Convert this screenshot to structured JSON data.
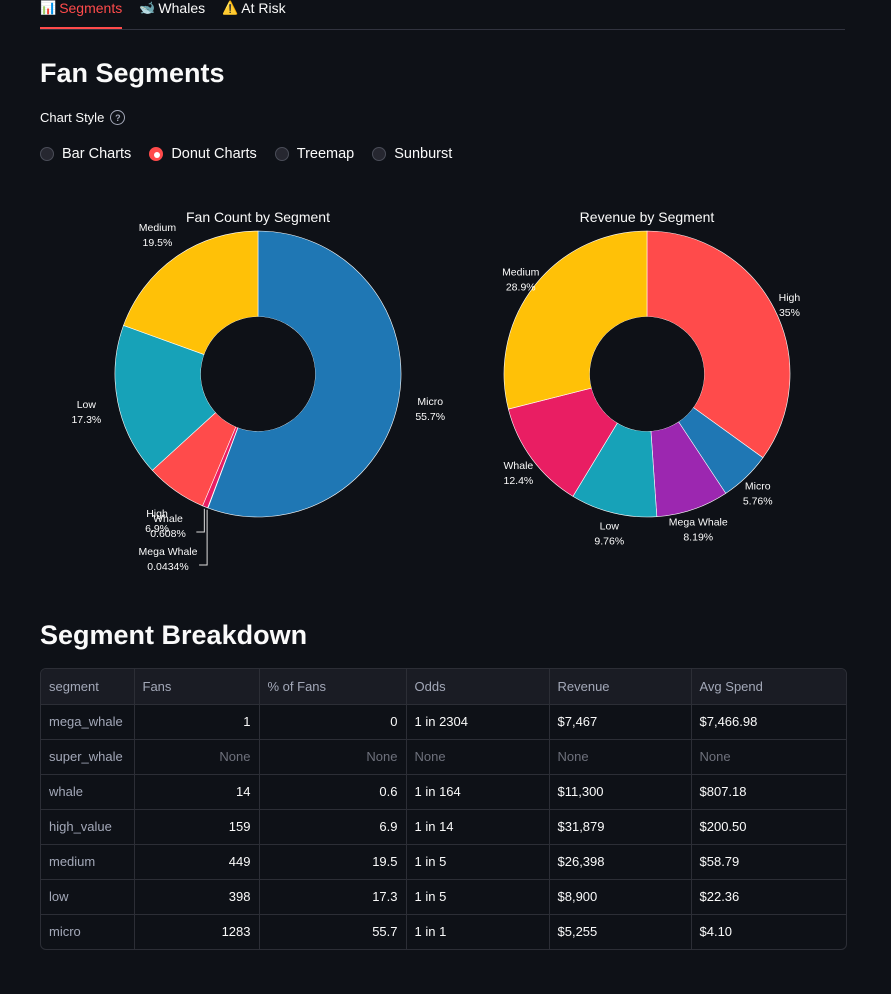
{
  "tabs": [
    {
      "icon": "📊",
      "label": "Segments"
    },
    {
      "icon": "🐋",
      "label": "Whales"
    },
    {
      "icon": "⚠️",
      "label": "At Risk"
    }
  ],
  "page_title": "Fan Segments",
  "chart_style": {
    "label": "Chart Style",
    "help": "?",
    "options": [
      "Bar Charts",
      "Donut Charts",
      "Treemap",
      "Sunburst"
    ],
    "selected": "Donut Charts"
  },
  "colors": {
    "micro": "#1f77b4",
    "medium": "#ffc107",
    "low": "#17a2b8",
    "high": "#ff4b4b",
    "whale": "#e91e63",
    "mega_whale": "#9c27b0"
  },
  "chart_data": [
    {
      "type": "pie",
      "title": "Fan Count by Segment",
      "hole": 0.4,
      "slices": [
        {
          "name": "Micro",
          "value": 1283,
          "pct_label": "55.7%",
          "color_key": "micro"
        },
        {
          "name": "Mega Whale",
          "value": 1,
          "pct_label": "0.0434%",
          "color_key": "mega_whale"
        },
        {
          "name": "Whale",
          "value": 14,
          "pct_label": "0.608%",
          "color_key": "whale"
        },
        {
          "name": "High",
          "value": 159,
          "pct_label": "6.9%",
          "color_key": "high"
        },
        {
          "name": "Low",
          "value": 398,
          "pct_label": "17.3%",
          "color_key": "low"
        },
        {
          "name": "Medium",
          "value": 449,
          "pct_label": "19.5%",
          "color_key": "medium"
        }
      ]
    },
    {
      "type": "pie",
      "title": "Revenue by Segment",
      "hole": 0.4,
      "slices": [
        {
          "name": "High",
          "value": 31879,
          "pct_label": "35%",
          "color_key": "high"
        },
        {
          "name": "Micro",
          "value": 5255,
          "pct_label": "5.76%",
          "color_key": "micro"
        },
        {
          "name": "Mega Whale",
          "value": 7467,
          "pct_label": "8.19%",
          "color_key": "mega_whale"
        },
        {
          "name": "Low",
          "value": 8900,
          "pct_label": "9.76%",
          "color_key": "low"
        },
        {
          "name": "Whale",
          "value": 11300,
          "pct_label": "12.4%",
          "color_key": "whale"
        },
        {
          "name": "Medium",
          "value": 26398,
          "pct_label": "28.9%",
          "color_key": "medium"
        }
      ]
    }
  ],
  "breakdown": {
    "title": "Segment Breakdown",
    "columns": [
      "segment",
      "Fans",
      "% of Fans",
      "Odds",
      "Revenue",
      "Avg Spend"
    ],
    "rows": [
      [
        "mega_whale",
        "1",
        "0",
        "1 in 2304",
        "$7,467",
        "$7,466.98"
      ],
      [
        "super_whale",
        "None",
        "None",
        "None",
        "None",
        "None"
      ],
      [
        "whale",
        "14",
        "0.6",
        "1 in 164",
        "$11,300",
        "$807.18"
      ],
      [
        "high_value",
        "159",
        "6.9",
        "1 in 14",
        "$31,879",
        "$200.50"
      ],
      [
        "medium",
        "449",
        "19.5",
        "1 in 5",
        "$26,398",
        "$58.79"
      ],
      [
        "low",
        "398",
        "17.3",
        "1 in 5",
        "$8,900",
        "$22.36"
      ],
      [
        "micro",
        "1283",
        "55.7",
        "1 in 1",
        "$5,255",
        "$4.10"
      ]
    ]
  }
}
